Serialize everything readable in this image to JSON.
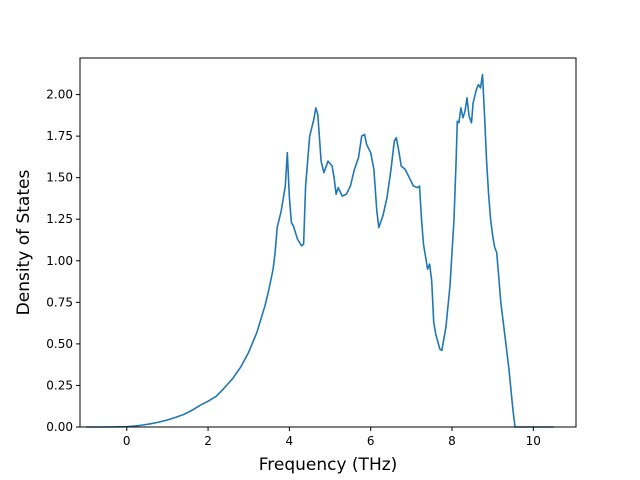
{
  "chart_data": {
    "type": "line",
    "title": "",
    "xlabel": "Frequency (THz)",
    "ylabel": "Density of States",
    "xlim": [
      -1.15,
      11.05
    ],
    "ylim": [
      0.0,
      2.22
    ],
    "xticks": [
      0,
      2,
      4,
      6,
      8,
      10
    ],
    "xtick_labels": [
      "0",
      "2",
      "4",
      "6",
      "8",
      "10"
    ],
    "yticks": [
      0.0,
      0.25,
      0.5,
      0.75,
      1.0,
      1.25,
      1.5,
      1.75,
      2.0
    ],
    "ytick_labels": [
      "0.00",
      "0.25",
      "0.50",
      "0.75",
      "1.00",
      "1.25",
      "1.50",
      "1.75",
      "2.00"
    ],
    "grid": false,
    "line_color": "#1f77b4",
    "series": [
      {
        "x": [
          -1.0,
          -0.5,
          0.0,
          0.2,
          0.4,
          0.6,
          0.8,
          1.0,
          1.2,
          1.4,
          1.6,
          1.8,
          2.0,
          2.2,
          2.4,
          2.6,
          2.8,
          3.0,
          3.2,
          3.4,
          3.5,
          3.6,
          3.65,
          3.7,
          3.8,
          3.9,
          3.95,
          4.0,
          4.05,
          4.1,
          4.2,
          4.3,
          4.35,
          4.4,
          4.5,
          4.6,
          4.65,
          4.7,
          4.78,
          4.85,
          4.95,
          5.05,
          5.1,
          5.15,
          5.2,
          5.3,
          5.4,
          5.5,
          5.6,
          5.7,
          5.78,
          5.85,
          5.9,
          6.0,
          6.08,
          6.15,
          6.2,
          6.3,
          6.4,
          6.5,
          6.58,
          6.63,
          6.7,
          6.75,
          6.85,
          6.95,
          7.05,
          7.15,
          7.2,
          7.25,
          7.3,
          7.4,
          7.45,
          7.5,
          7.55,
          7.6,
          7.7,
          7.75,
          7.85,
          7.95,
          8.05,
          8.1,
          8.13,
          8.17,
          8.22,
          8.27,
          8.32,
          8.37,
          8.42,
          8.48,
          8.52,
          8.6,
          8.65,
          8.7,
          8.75,
          8.8,
          8.85,
          8.9,
          8.95,
          9.0,
          9.05,
          9.1,
          9.15,
          9.2,
          9.3,
          9.4,
          9.5,
          9.55,
          9.6,
          9.7,
          10.0,
          10.5
        ],
        "y": [
          0.0,
          0.0,
          0.002,
          0.006,
          0.012,
          0.02,
          0.03,
          0.042,
          0.058,
          0.075,
          0.1,
          0.13,
          0.155,
          0.185,
          0.235,
          0.29,
          0.36,
          0.45,
          0.57,
          0.73,
          0.83,
          0.95,
          1.05,
          1.2,
          1.3,
          1.45,
          1.65,
          1.38,
          1.23,
          1.21,
          1.13,
          1.09,
          1.1,
          1.45,
          1.75,
          1.85,
          1.92,
          1.88,
          1.6,
          1.53,
          1.6,
          1.57,
          1.5,
          1.4,
          1.44,
          1.39,
          1.4,
          1.45,
          1.55,
          1.62,
          1.75,
          1.76,
          1.7,
          1.65,
          1.55,
          1.3,
          1.2,
          1.27,
          1.38,
          1.55,
          1.72,
          1.74,
          1.65,
          1.57,
          1.55,
          1.5,
          1.45,
          1.44,
          1.45,
          1.25,
          1.1,
          0.95,
          0.98,
          0.88,
          0.63,
          0.56,
          0.47,
          0.46,
          0.6,
          0.85,
          1.25,
          1.6,
          1.84,
          1.83,
          1.92,
          1.86,
          1.9,
          1.98,
          1.87,
          1.83,
          1.95,
          2.03,
          2.06,
          2.04,
          2.12,
          1.88,
          1.6,
          1.4,
          1.25,
          1.15,
          1.08,
          1.05,
          0.9,
          0.75,
          0.55,
          0.35,
          0.1,
          0.0,
          0.0,
          0.0,
          0.0,
          0.0
        ]
      }
    ]
  }
}
